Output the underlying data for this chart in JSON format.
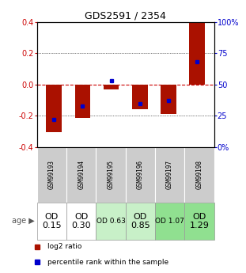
{
  "title": "GDS2591 / 2354",
  "samples": [
    "GSM99193",
    "GSM99194",
    "GSM99195",
    "GSM99196",
    "GSM99197",
    "GSM99198"
  ],
  "log2_ratios": [
    -0.305,
    -0.215,
    -0.03,
    -0.155,
    -0.19,
    0.395
  ],
  "percentile_ranks": [
    22,
    33,
    53,
    35,
    37,
    68
  ],
  "age_labels": [
    "OD\n0.15",
    "OD\n0.30",
    "OD 0.63",
    "OD\n0.85",
    "OD 1.07",
    "OD\n1.29"
  ],
  "age_bg_colors": [
    "#ffffff",
    "#ffffff",
    "#c8f0c8",
    "#c8f0c8",
    "#90e090",
    "#90e090"
  ],
  "age_font_sizes": [
    8,
    8,
    6.5,
    8,
    6.5,
    8
  ],
  "bar_color": "#aa1100",
  "dot_color": "#0000cc",
  "ylim": [
    -0.4,
    0.4
  ],
  "yticks": [
    -0.4,
    -0.2,
    0.0,
    0.2,
    0.4
  ],
  "grid_color": "#000000",
  "zero_line_color": "#cc0000",
  "background_color": "#ffffff",
  "legend_label1": "log2 ratio",
  "legend_label2": "percentile rank within the sample",
  "bar_width": 0.55
}
